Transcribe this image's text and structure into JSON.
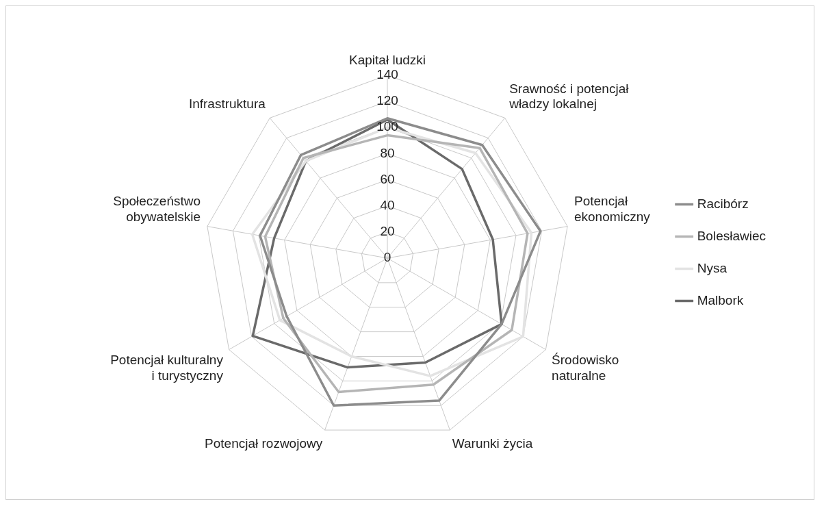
{
  "chart_data": {
    "type": "radar",
    "categories": [
      "Kapitał ludzki",
      "Srawność i potencjał władzy lokalnej",
      "Potencjał ekonomiczny",
      "Środowisko naturalne",
      "Warunki życia",
      "Potencjał rozwojowy",
      "Potencjał kulturalny i turystyczny",
      "Społeczeństwo obywatelskie",
      "Infrastruktura"
    ],
    "series": [
      {
        "name": "Racibórz",
        "color": "#8c8c8c",
        "values": [
          107,
          113,
          119,
          101,
          116,
          120,
          89,
          99,
          103
        ]
      },
      {
        "name": "Bolesławiec",
        "color": "#b5b5b5",
        "values": [
          94,
          110,
          109,
          110,
          103,
          109,
          92,
          95,
          100
        ]
      },
      {
        "name": "Nysa",
        "color": "#e3e3e3",
        "values": [
          100,
          105,
          112,
          120,
          96,
          80,
          95,
          105,
          97
        ]
      },
      {
        "name": "Malbork",
        "color": "#6a6a6a",
        "values": [
          106,
          89,
          82,
          101,
          85,
          89,
          119,
          88,
          97
        ]
      }
    ],
    "ylim": [
      0,
      140
    ],
    "yticks": [
      0,
      20,
      40,
      60,
      80,
      100,
      120,
      140
    ],
    "grid": true,
    "legend": "right",
    "marker": "none",
    "line_style": "solid"
  }
}
